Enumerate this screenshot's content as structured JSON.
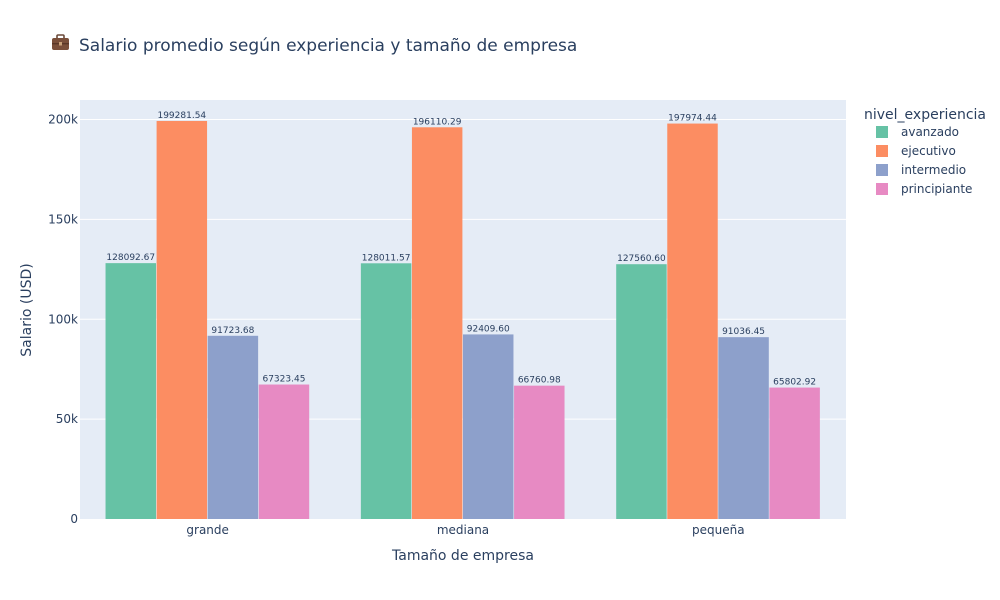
{
  "chart_data": {
    "type": "bar",
    "title_icon": "briefcase-icon",
    "title": "Salario promedio según experiencia y tamaño de empresa",
    "xlabel": "Tamaño de empresa",
    "ylabel": "Salario (USD)",
    "categories": [
      "grande",
      "mediana",
      "pequeña"
    ],
    "series": [
      {
        "name": "avanzado",
        "color": "#66c2a5",
        "values": [
          128092.67,
          128011.57,
          127560.6
        ],
        "labels": [
          "128092.67",
          "128011.57",
          "127560.60"
        ]
      },
      {
        "name": "ejecutivo",
        "color": "#fc8d62",
        "values": [
          199281.54,
          196110.29,
          197974.44
        ],
        "labels": [
          "199281.54",
          "196110.29",
          "197974.44"
        ]
      },
      {
        "name": "intermedio",
        "color": "#8da0cb",
        "values": [
          91723.68,
          92409.6,
          91036.45
        ],
        "labels": [
          "91723.68",
          "92409.60",
          "91036.45"
        ]
      },
      {
        "name": "principiante",
        "color": "#e78ac3",
        "values": [
          67323.45,
          66760.98,
          65802.92
        ],
        "labels": [
          "67323.45",
          "66760.98",
          "65802.92"
        ]
      }
    ],
    "ylim": [
      0,
      209770
    ],
    "yticks": [
      0,
      50000,
      100000,
      150000,
      200000
    ],
    "ytick_labels": [
      "0",
      "50k",
      "100k",
      "150k",
      "200k"
    ],
    "legend_title": "nivel_experiencia",
    "legend_position": "top-right",
    "grid": true,
    "plot_background": "#e5ecf6"
  }
}
